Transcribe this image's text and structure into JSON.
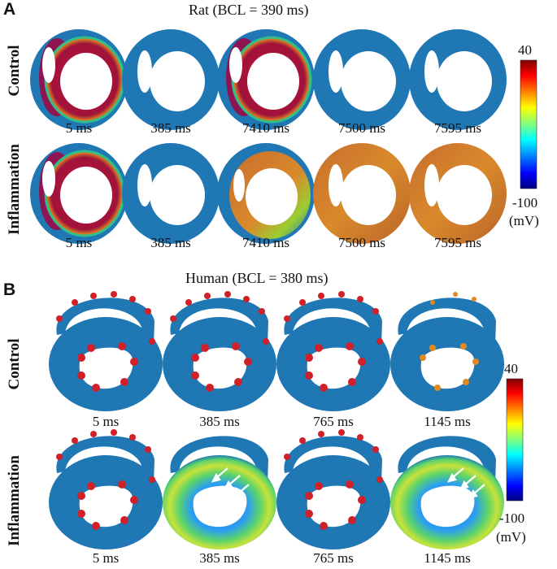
{
  "panels": [
    {
      "label": "A",
      "title": "Rat (BCL = 390 ms)",
      "rows": [
        {
          "name": "Control",
          "times": [
            "5 ms",
            "385 ms",
            "7410 ms",
            "7500 ms",
            "7595 ms"
          ]
        },
        {
          "name": "Inflammation",
          "times": [
            "5 ms",
            "385 ms",
            "7410 ms",
            "7500 ms",
            "7595 ms"
          ]
        }
      ],
      "colorbar": {
        "max": "40",
        "min": "-100",
        "unit": "(mV)"
      }
    },
    {
      "label": "B",
      "title": "Human (BCL = 380 ms)",
      "rows": [
        {
          "name": "Control",
          "times": [
            "5 ms",
            "385 ms",
            "765 ms",
            "1145 ms"
          ]
        },
        {
          "name": "Inflammation",
          "times": [
            "5 ms",
            "385 ms",
            "765 ms",
            "1145 ms"
          ]
        }
      ],
      "colorbar": {
        "max": "40",
        "min": "-100",
        "unit": "(mV)"
      }
    }
  ],
  "colors": {
    "resting": "#1f77b4",
    "depolarized": "#b5173a",
    "plateau": "#d98a2b",
    "intermediate": "#9acd32"
  }
}
